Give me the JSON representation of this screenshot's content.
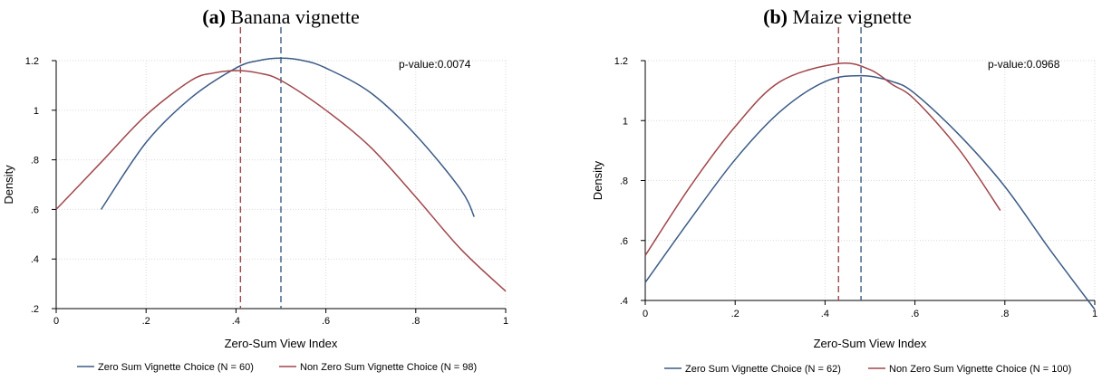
{
  "colors": {
    "zero_sum": "#3b5b86",
    "non_zero_sum": "#a0464b",
    "grid": "#d9d9d9"
  },
  "chart_data": [
    {
      "type": "line",
      "panel_label": "(a)",
      "title": "Banana vignette",
      "xlabel": "Zero-Sum View Index",
      "ylabel": "Density",
      "xlim": [
        0,
        1
      ],
      "ylim": [
        0.2,
        1.2
      ],
      "xticks": [
        0,
        0.2,
        0.4,
        0.6,
        0.8,
        1
      ],
      "xtick_labels": [
        "0",
        ".2",
        ".4",
        ".6",
        ".8",
        "1"
      ],
      "yticks": [
        0.2,
        0.4,
        0.6,
        0.8,
        1.0,
        1.2
      ],
      "ytick_labels": [
        ".2",
        ".4",
        ".6",
        ".8",
        "1",
        "1.2"
      ],
      "grid": true,
      "annotation": "p-value:0.0074",
      "series": [
        {
          "name": "Zero Sum Vignette Choice (N = 60)",
          "color_key": "zero_sum",
          "mean": 0.5,
          "x": [
            0.1,
            0.2,
            0.3,
            0.4,
            0.45,
            0.5,
            0.55,
            0.6,
            0.7,
            0.8,
            0.9,
            0.93
          ],
          "y": [
            0.6,
            0.87,
            1.05,
            1.17,
            1.2,
            1.21,
            1.2,
            1.17,
            1.07,
            0.9,
            0.68,
            0.57
          ]
        },
        {
          "name": "Non Zero Sum Vignette Choice (N = 98)",
          "color_key": "non_zero_sum",
          "mean": 0.41,
          "x": [
            0.0,
            0.1,
            0.2,
            0.3,
            0.35,
            0.4,
            0.45,
            0.5,
            0.6,
            0.7,
            0.8,
            0.9,
            1.0
          ],
          "y": [
            0.6,
            0.79,
            0.98,
            1.12,
            1.15,
            1.16,
            1.15,
            1.12,
            1.0,
            0.85,
            0.65,
            0.44,
            0.27
          ]
        }
      ]
    },
    {
      "type": "line",
      "panel_label": "(b)",
      "title": "Maize vignette",
      "xlabel": "Zero-Sum View Index",
      "ylabel": "Density",
      "xlim": [
        0,
        1
      ],
      "ylim": [
        0.4,
        1.2
      ],
      "xticks": [
        0,
        0.2,
        0.4,
        0.6,
        0.8,
        1
      ],
      "xtick_labels": [
        "0",
        ".2",
        ".4",
        ".6",
        ".8",
        "1"
      ],
      "yticks": [
        0.4,
        0.6,
        0.8,
        1.0,
        1.2
      ],
      "ytick_labels": [
        ".4",
        ".6",
        ".8",
        "1",
        "1.2"
      ],
      "grid": true,
      "annotation": "p-value:0.0968",
      "series": [
        {
          "name": "Zero Sum Vignette Choice (N = 62)",
          "color_key": "zero_sum",
          "mean": 0.48,
          "x": [
            0.0,
            0.1,
            0.2,
            0.3,
            0.4,
            0.48,
            0.55,
            0.6,
            0.7,
            0.8,
            0.9,
            1.0
          ],
          "y": [
            0.46,
            0.67,
            0.87,
            1.03,
            1.13,
            1.15,
            1.13,
            1.09,
            0.95,
            0.78,
            0.57,
            0.37
          ]
        },
        {
          "name": "Non Zero Sum Vignette Choice (N = 100)",
          "color_key": "non_zero_sum",
          "mean": 0.43,
          "x": [
            0.0,
            0.1,
            0.2,
            0.3,
            0.43,
            0.5,
            0.55,
            0.6,
            0.7,
            0.79
          ],
          "y": [
            0.55,
            0.78,
            0.98,
            1.13,
            1.19,
            1.17,
            1.12,
            1.07,
            0.9,
            0.7
          ]
        }
      ]
    }
  ]
}
